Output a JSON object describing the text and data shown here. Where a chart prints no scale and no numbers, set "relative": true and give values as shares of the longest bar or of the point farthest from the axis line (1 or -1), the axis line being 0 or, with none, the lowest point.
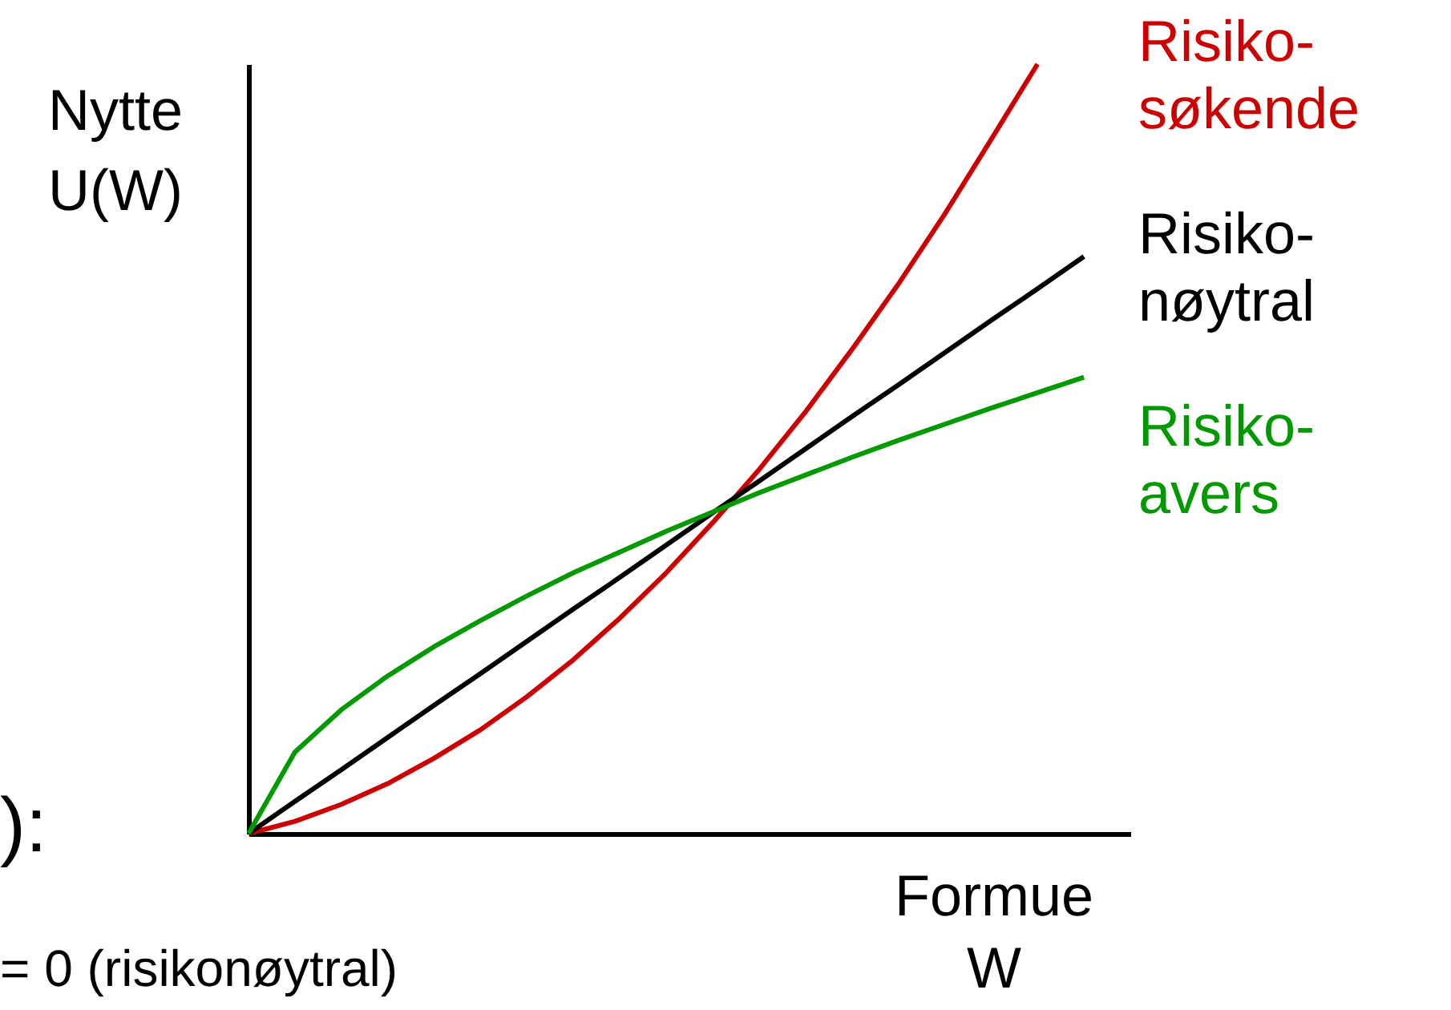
{
  "chart_data": {
    "type": "line",
    "relative": true,
    "ylabel": "Nytte U(W)",
    "xlabel": "Formue W",
    "categories": [
      null,
      null,
      null,
      null,
      null,
      null,
      null,
      null,
      null,
      null,
      null,
      null,
      null,
      null,
      null,
      null,
      null,
      null,
      null,
      null
    ],
    "series": [
      {
        "name": "Risiko-søkende",
        "color": "#cc0000",
        "values": [
          0,
          0.016,
          0.038,
          0.065,
          0.098,
          0.135,
          0.178,
          0.226,
          0.28,
          0.339,
          0.404,
          0.473,
          0.548,
          0.629,
          0.714,
          0.805,
          0.902,
          1.0,
          null,
          null
        ]
      },
      {
        "name": "Risiko-nøytral",
        "color": "#000000",
        "values": [
          0,
          0.042,
          0.083,
          0.125,
          0.167,
          0.208,
          0.25,
          0.292,
          0.333,
          0.375,
          0.417,
          0.458,
          0.5,
          0.542,
          0.583,
          0.625,
          0.667,
          0.708,
          0.75,
          null
        ]
      },
      {
        "name": "Risiko-avers",
        "color": "#009900",
        "values": [
          0,
          0.106,
          0.161,
          0.205,
          0.243,
          0.277,
          0.309,
          0.339,
          0.366,
          0.393,
          0.418,
          0.443,
          0.466,
          0.489,
          0.511,
          0.532,
          0.553,
          0.573,
          0.593,
          null
        ]
      }
    ],
    "annotations": [
      "):",
      "= 0 (risikonøytral)"
    ],
    "line_style": "solid"
  }
}
